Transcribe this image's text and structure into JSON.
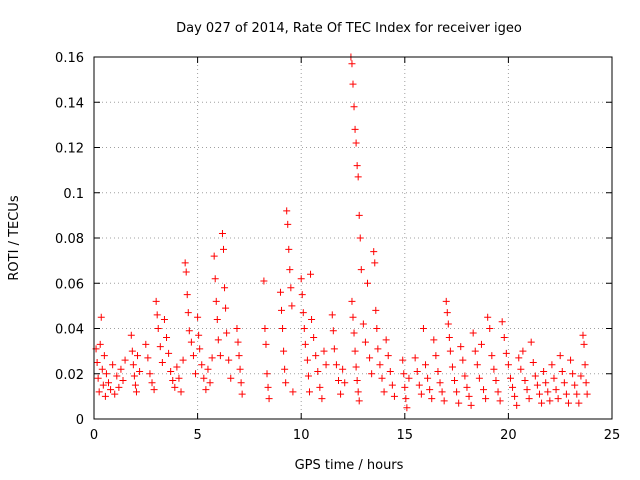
{
  "chart_data": {
    "type": "scatter",
    "title": "Day 027 of 2014, Rate Of TEC Index for receiver igeo",
    "xlabel": "GPS time / hours",
    "ylabel": "ROTI / TECUs",
    "xlim": [
      0,
      25
    ],
    "ylim": [
      0,
      0.16
    ],
    "xticks": [
      0,
      5,
      10,
      15,
      20,
      25
    ],
    "xtick_labels": [
      "0",
      "5",
      "10",
      "15",
      "20",
      "25"
    ],
    "yticks": [
      0,
      0.02,
      0.04,
      0.06,
      0.08,
      0.1,
      0.12,
      0.14,
      0.16
    ],
    "ytick_labels": [
      "0",
      "0.02",
      "0.04",
      "0.06",
      "0.08",
      "0.1",
      "0.12",
      "0.14",
      "0.16"
    ],
    "grid": true,
    "marker": "+",
    "color": "#ff0000",
    "series": [
      {
        "name": "ROTI",
        "points": [
          [
            0.1,
            0.031
          ],
          [
            0.15,
            0.025
          ],
          [
            0.2,
            0.018
          ],
          [
            0.25,
            0.012
          ],
          [
            0.3,
            0.033
          ],
          [
            0.35,
            0.045
          ],
          [
            0.4,
            0.022
          ],
          [
            0.45,
            0.015
          ],
          [
            0.5,
            0.028
          ],
          [
            0.55,
            0.01
          ],
          [
            0.6,
            0.02
          ],
          [
            0.7,
            0.016
          ],
          [
            0.8,
            0.013
          ],
          [
            0.9,
            0.024
          ],
          [
            1.0,
            0.011
          ],
          [
            1.1,
            0.019
          ],
          [
            1.2,
            0.014
          ],
          [
            1.3,
            0.022
          ],
          [
            1.4,
            0.017
          ],
          [
            1.5,
            0.026
          ],
          [
            1.8,
            0.037
          ],
          [
            1.85,
            0.03
          ],
          [
            1.9,
            0.024
          ],
          [
            1.95,
            0.019
          ],
          [
            2.0,
            0.015
          ],
          [
            2.05,
            0.012
          ],
          [
            2.1,
            0.028
          ],
          [
            2.2,
            0.021
          ],
          [
            2.5,
            0.033
          ],
          [
            2.6,
            0.027
          ],
          [
            2.7,
            0.02
          ],
          [
            2.8,
            0.016
          ],
          [
            2.9,
            0.013
          ],
          [
            3.0,
            0.052
          ],
          [
            3.05,
            0.046
          ],
          [
            3.1,
            0.04
          ],
          [
            3.2,
            0.032
          ],
          [
            3.3,
            0.025
          ],
          [
            3.4,
            0.044
          ],
          [
            3.5,
            0.036
          ],
          [
            3.6,
            0.029
          ],
          [
            3.7,
            0.021
          ],
          [
            3.8,
            0.017
          ],
          [
            3.9,
            0.014
          ],
          [
            4.0,
            0.023
          ],
          [
            4.1,
            0.018
          ],
          [
            4.2,
            0.012
          ],
          [
            4.3,
            0.026
          ],
          [
            4.4,
            0.069
          ],
          [
            4.45,
            0.065
          ],
          [
            4.5,
            0.055
          ],
          [
            4.55,
            0.047
          ],
          [
            4.6,
            0.039
          ],
          [
            4.7,
            0.034
          ],
          [
            4.8,
            0.028
          ],
          [
            4.9,
            0.02
          ],
          [
            5.0,
            0.045
          ],
          [
            5.05,
            0.037
          ],
          [
            5.1,
            0.031
          ],
          [
            5.2,
            0.024
          ],
          [
            5.3,
            0.018
          ],
          [
            5.4,
            0.013
          ],
          [
            5.5,
            0.022
          ],
          [
            5.6,
            0.016
          ],
          [
            5.7,
            0.027
          ],
          [
            5.8,
            0.072
          ],
          [
            5.85,
            0.062
          ],
          [
            5.9,
            0.052
          ],
          [
            5.95,
            0.044
          ],
          [
            6.0,
            0.035
          ],
          [
            6.1,
            0.028
          ],
          [
            6.2,
            0.082
          ],
          [
            6.25,
            0.075
          ],
          [
            6.3,
            0.058
          ],
          [
            6.35,
            0.049
          ],
          [
            6.4,
            0.038
          ],
          [
            6.5,
            0.026
          ],
          [
            6.6,
            0.018
          ],
          [
            6.9,
            0.04
          ],
          [
            6.95,
            0.034
          ],
          [
            7.0,
            0.028
          ],
          [
            7.05,
            0.022
          ],
          [
            7.1,
            0.016
          ],
          [
            7.15,
            0.011
          ],
          [
            8.2,
            0.061
          ],
          [
            8.25,
            0.04
          ],
          [
            8.3,
            0.033
          ],
          [
            8.35,
            0.02
          ],
          [
            8.4,
            0.014
          ],
          [
            8.45,
            0.009
          ],
          [
            9.0,
            0.056
          ],
          [
            9.05,
            0.048
          ],
          [
            9.1,
            0.04
          ],
          [
            9.15,
            0.03
          ],
          [
            9.2,
            0.022
          ],
          [
            9.25,
            0.016
          ],
          [
            9.3,
            0.092
          ],
          [
            9.35,
            0.086
          ],
          [
            9.4,
            0.075
          ],
          [
            9.45,
            0.066
          ],
          [
            9.5,
            0.058
          ],
          [
            9.55,
            0.05
          ],
          [
            9.6,
            0.012
          ],
          [
            10.0,
            0.062
          ],
          [
            10.05,
            0.055
          ],
          [
            10.1,
            0.047
          ],
          [
            10.15,
            0.04
          ],
          [
            10.2,
            0.033
          ],
          [
            10.3,
            0.026
          ],
          [
            10.35,
            0.019
          ],
          [
            10.4,
            0.012
          ],
          [
            10.45,
            0.064
          ],
          [
            10.5,
            0.044
          ],
          [
            10.6,
            0.036
          ],
          [
            10.7,
            0.028
          ],
          [
            10.8,
            0.021
          ],
          [
            10.9,
            0.014
          ],
          [
            11.0,
            0.009
          ],
          [
            11.1,
            0.03
          ],
          [
            11.2,
            0.024
          ],
          [
            11.5,
            0.046
          ],
          [
            11.55,
            0.039
          ],
          [
            11.6,
            0.031
          ],
          [
            11.7,
            0.024
          ],
          [
            11.8,
            0.017
          ],
          [
            11.9,
            0.011
          ],
          [
            12.0,
            0.022
          ],
          [
            12.1,
            0.016
          ],
          [
            12.4,
            0.16
          ],
          [
            12.45,
            0.157
          ],
          [
            12.5,
            0.148
          ],
          [
            12.55,
            0.138
          ],
          [
            12.6,
            0.128
          ],
          [
            12.65,
            0.122
          ],
          [
            12.7,
            0.112
          ],
          [
            12.75,
            0.107
          ],
          [
            12.8,
            0.09
          ],
          [
            12.85,
            0.08
          ],
          [
            12.9,
            0.066
          ],
          [
            12.45,
            0.052
          ],
          [
            12.5,
            0.045
          ],
          [
            12.55,
            0.038
          ],
          [
            12.6,
            0.03
          ],
          [
            12.65,
            0.023
          ],
          [
            12.7,
            0.017
          ],
          [
            12.75,
            0.012
          ],
          [
            12.8,
            0.008
          ],
          [
            13.0,
            0.042
          ],
          [
            13.1,
            0.034
          ],
          [
            13.2,
            0.06
          ],
          [
            13.3,
            0.027
          ],
          [
            13.4,
            0.02
          ],
          [
            13.5,
            0.074
          ],
          [
            13.55,
            0.069
          ],
          [
            13.6,
            0.048
          ],
          [
            13.65,
            0.04
          ],
          [
            13.7,
            0.031
          ],
          [
            13.8,
            0.024
          ],
          [
            13.9,
            0.018
          ],
          [
            14.0,
            0.012
          ],
          [
            14.1,
            0.035
          ],
          [
            14.2,
            0.028
          ],
          [
            14.3,
            0.021
          ],
          [
            14.4,
            0.015
          ],
          [
            14.5,
            0.01
          ],
          [
            14.9,
            0.026
          ],
          [
            14.95,
            0.02
          ],
          [
            15.0,
            0.014
          ],
          [
            15.05,
            0.009
          ],
          [
            15.1,
            0.005
          ],
          [
            15.2,
            0.018
          ],
          [
            15.5,
            0.027
          ],
          [
            15.6,
            0.021
          ],
          [
            15.7,
            0.015
          ],
          [
            15.8,
            0.011
          ],
          [
            15.9,
            0.04
          ],
          [
            16.0,
            0.024
          ],
          [
            16.1,
            0.018
          ],
          [
            16.2,
            0.013
          ],
          [
            16.3,
            0.009
          ],
          [
            16.4,
            0.035
          ],
          [
            16.5,
            0.028
          ],
          [
            16.6,
            0.021
          ],
          [
            16.7,
            0.016
          ],
          [
            16.8,
            0.012
          ],
          [
            16.9,
            0.008
          ],
          [
            17.0,
            0.052
          ],
          [
            17.05,
            0.047
          ],
          [
            17.1,
            0.042
          ],
          [
            17.15,
            0.036
          ],
          [
            17.2,
            0.03
          ],
          [
            17.3,
            0.023
          ],
          [
            17.4,
            0.017
          ],
          [
            17.5,
            0.012
          ],
          [
            17.6,
            0.007
          ],
          [
            17.7,
            0.032
          ],
          [
            17.8,
            0.026
          ],
          [
            17.9,
            0.019
          ],
          [
            18.0,
            0.014
          ],
          [
            18.1,
            0.01
          ],
          [
            18.2,
            0.006
          ],
          [
            18.3,
            0.038
          ],
          [
            18.4,
            0.03
          ],
          [
            18.5,
            0.024
          ],
          [
            18.6,
            0.018
          ],
          [
            18.7,
            0.033
          ],
          [
            18.8,
            0.013
          ],
          [
            18.9,
            0.009
          ],
          [
            19.0,
            0.045
          ],
          [
            19.1,
            0.04
          ],
          [
            19.2,
            0.028
          ],
          [
            19.3,
            0.022
          ],
          [
            19.4,
            0.017
          ],
          [
            19.5,
            0.012
          ],
          [
            19.6,
            0.008
          ],
          [
            19.7,
            0.043
          ],
          [
            19.8,
            0.036
          ],
          [
            19.9,
            0.029
          ],
          [
            20.0,
            0.024
          ],
          [
            20.1,
            0.018
          ],
          [
            20.2,
            0.014
          ],
          [
            20.3,
            0.01
          ],
          [
            20.4,
            0.006
          ],
          [
            20.5,
            0.027
          ],
          [
            20.6,
            0.022
          ],
          [
            20.7,
            0.03
          ],
          [
            20.8,
            0.017
          ],
          [
            20.9,
            0.013
          ],
          [
            21.0,
            0.009
          ],
          [
            21.1,
            0.034
          ],
          [
            21.2,
            0.025
          ],
          [
            21.3,
            0.019
          ],
          [
            21.4,
            0.015
          ],
          [
            21.5,
            0.011
          ],
          [
            21.6,
            0.007
          ],
          [
            21.7,
            0.021
          ],
          [
            21.8,
            0.016
          ],
          [
            21.9,
            0.012
          ],
          [
            22.0,
            0.008
          ],
          [
            22.1,
            0.024
          ],
          [
            22.2,
            0.018
          ],
          [
            22.3,
            0.013
          ],
          [
            22.4,
            0.009
          ],
          [
            22.5,
            0.028
          ],
          [
            22.6,
            0.021
          ],
          [
            22.7,
            0.016
          ],
          [
            22.8,
            0.011
          ],
          [
            22.9,
            0.007
          ],
          [
            23.0,
            0.026
          ],
          [
            23.1,
            0.02
          ],
          [
            23.2,
            0.015
          ],
          [
            23.3,
            0.011
          ],
          [
            23.4,
            0.007
          ],
          [
            23.5,
            0.019
          ],
          [
            23.6,
            0.037
          ],
          [
            23.65,
            0.033
          ],
          [
            23.7,
            0.024
          ],
          [
            23.75,
            0.016
          ],
          [
            23.8,
            0.011
          ]
        ]
      }
    ]
  }
}
